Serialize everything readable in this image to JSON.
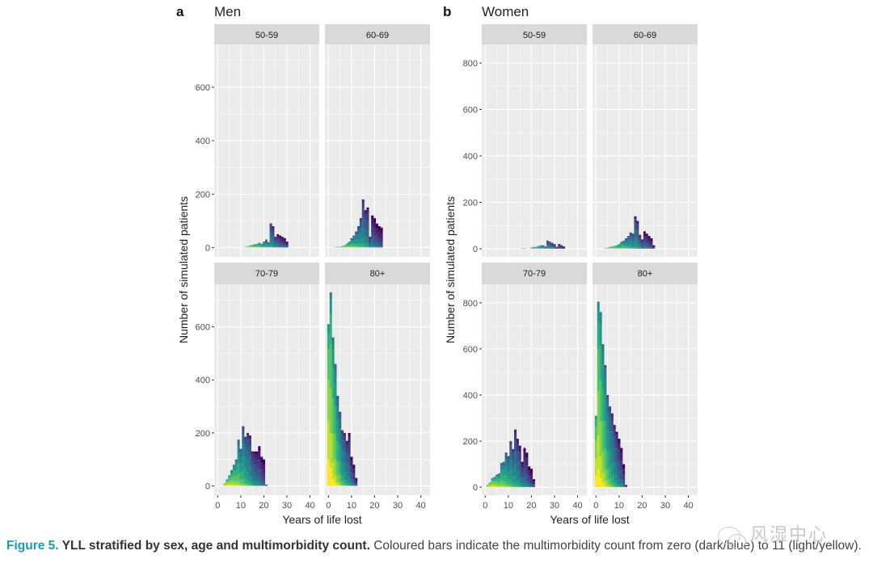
{
  "chart_data": [
    {
      "type": "bar",
      "subtype": "stacked-histogram-facets",
      "panel_letter": "a",
      "title": "Men",
      "xlabel": "Years of life lost",
      "ylabel": "Number of simulated patients",
      "x_ticks": [
        0,
        10,
        20,
        30,
        40
      ],
      "xlim": [
        -1.5,
        44
      ],
      "grid": true,
      "row_ylims": [
        [
          -35,
          760
        ],
        [
          -35,
          760
        ]
      ],
      "row_yticks": [
        [
          0,
          200,
          400,
          600
        ],
        [
          0,
          200,
          400,
          600
        ]
      ],
      "facets": [
        {
          "label": "50-59",
          "bin_width": 1,
          "bin_start": 12,
          "totals": [
            3,
            5,
            8,
            10,
            12,
            14,
            18,
            14,
            22,
            30,
            20,
            90,
            80,
            40,
            50,
            45,
            40,
            35,
            22
          ]
        },
        {
          "label": "60-69",
          "bin_width": 1,
          "bin_start": 3,
          "totals": [
            2,
            3,
            3,
            5,
            8,
            15,
            22,
            35,
            45,
            60,
            80,
            110,
            180,
            140,
            150,
            40,
            120,
            110,
            90,
            80,
            75
          ]
        },
        {
          "label": "70-79",
          "bin_width": 1,
          "bin_start": 3,
          "totals": [
            10,
            25,
            40,
            60,
            80,
            100,
            175,
            140,
            225,
            185,
            200,
            190,
            130,
            130,
            130,
            150,
            110,
            100,
            5
          ]
        },
        {
          "label": "80+",
          "bin_width": 1,
          "bin_start": 0,
          "totals": [
            610,
            730,
            560,
            460,
            340,
            280,
            210,
            200,
            170,
            200,
            110,
            80,
            30
          ]
        }
      ]
    },
    {
      "type": "bar",
      "subtype": "stacked-histogram-facets",
      "panel_letter": "b",
      "title": "Women",
      "xlabel": "Years of life lost",
      "ylabel": "Number of simulated patients",
      "x_ticks": [
        0,
        10,
        20,
        30,
        40
      ],
      "xlim": [
        -1.5,
        44
      ],
      "grid": true,
      "row_ylims": [
        [
          -35,
          880
        ],
        [
          -35,
          880
        ]
      ],
      "row_yticks": [
        [
          0,
          200,
          400,
          600,
          800
        ],
        [
          0,
          200,
          400,
          600,
          800
        ]
      ],
      "facets": [
        {
          "label": "50-59",
          "bin_width": 1,
          "bin_start": 16,
          "totals": [
            3,
            3,
            0,
            0,
            5,
            8,
            8,
            12,
            15,
            15,
            10,
            35,
            30,
            25,
            20,
            8,
            20,
            15,
            10
          ]
        },
        {
          "label": "60-69",
          "bin_width": 1,
          "bin_start": 4,
          "totals": [
            3,
            5,
            8,
            10,
            12,
            15,
            20,
            30,
            35,
            45,
            55,
            70,
            65,
            140,
            120,
            60,
            40,
            75,
            65,
            55,
            45,
            15
          ]
        },
        {
          "label": "70-79",
          "bin_width": 1,
          "bin_start": 1,
          "totals": [
            10,
            20,
            40,
            45,
            55,
            60,
            105,
            110,
            150,
            135,
            200,
            165,
            250,
            210,
            180,
            110,
            170,
            150,
            90,
            80,
            35
          ]
        },
        {
          "label": "80+",
          "bin_width": 1,
          "bin_start": 0,
          "totals": [
            310,
            805,
            760,
            620,
            530,
            400,
            350,
            320,
            270,
            240,
            210,
            170,
            100,
            10
          ]
        }
      ],
      "legend": "none"
    }
  ],
  "color_scale": {
    "name": "viridis",
    "min_label": "0",
    "max_label": "11",
    "stops": [
      "#440154",
      "#482878",
      "#3e4989",
      "#31688e",
      "#26828e",
      "#1f9e89",
      "#35b779",
      "#6ece58",
      "#b5de2b",
      "#fde725"
    ]
  },
  "caption": {
    "label": "Figure 5.",
    "title": " YLL stratified by sex, age and multimorbidity count.",
    "body": " Coloured bars indicate the multimorbidity count from zero (dark/blue) to 11 (light/yellow)."
  },
  "watermark": {
    "text": "风湿中心"
  }
}
